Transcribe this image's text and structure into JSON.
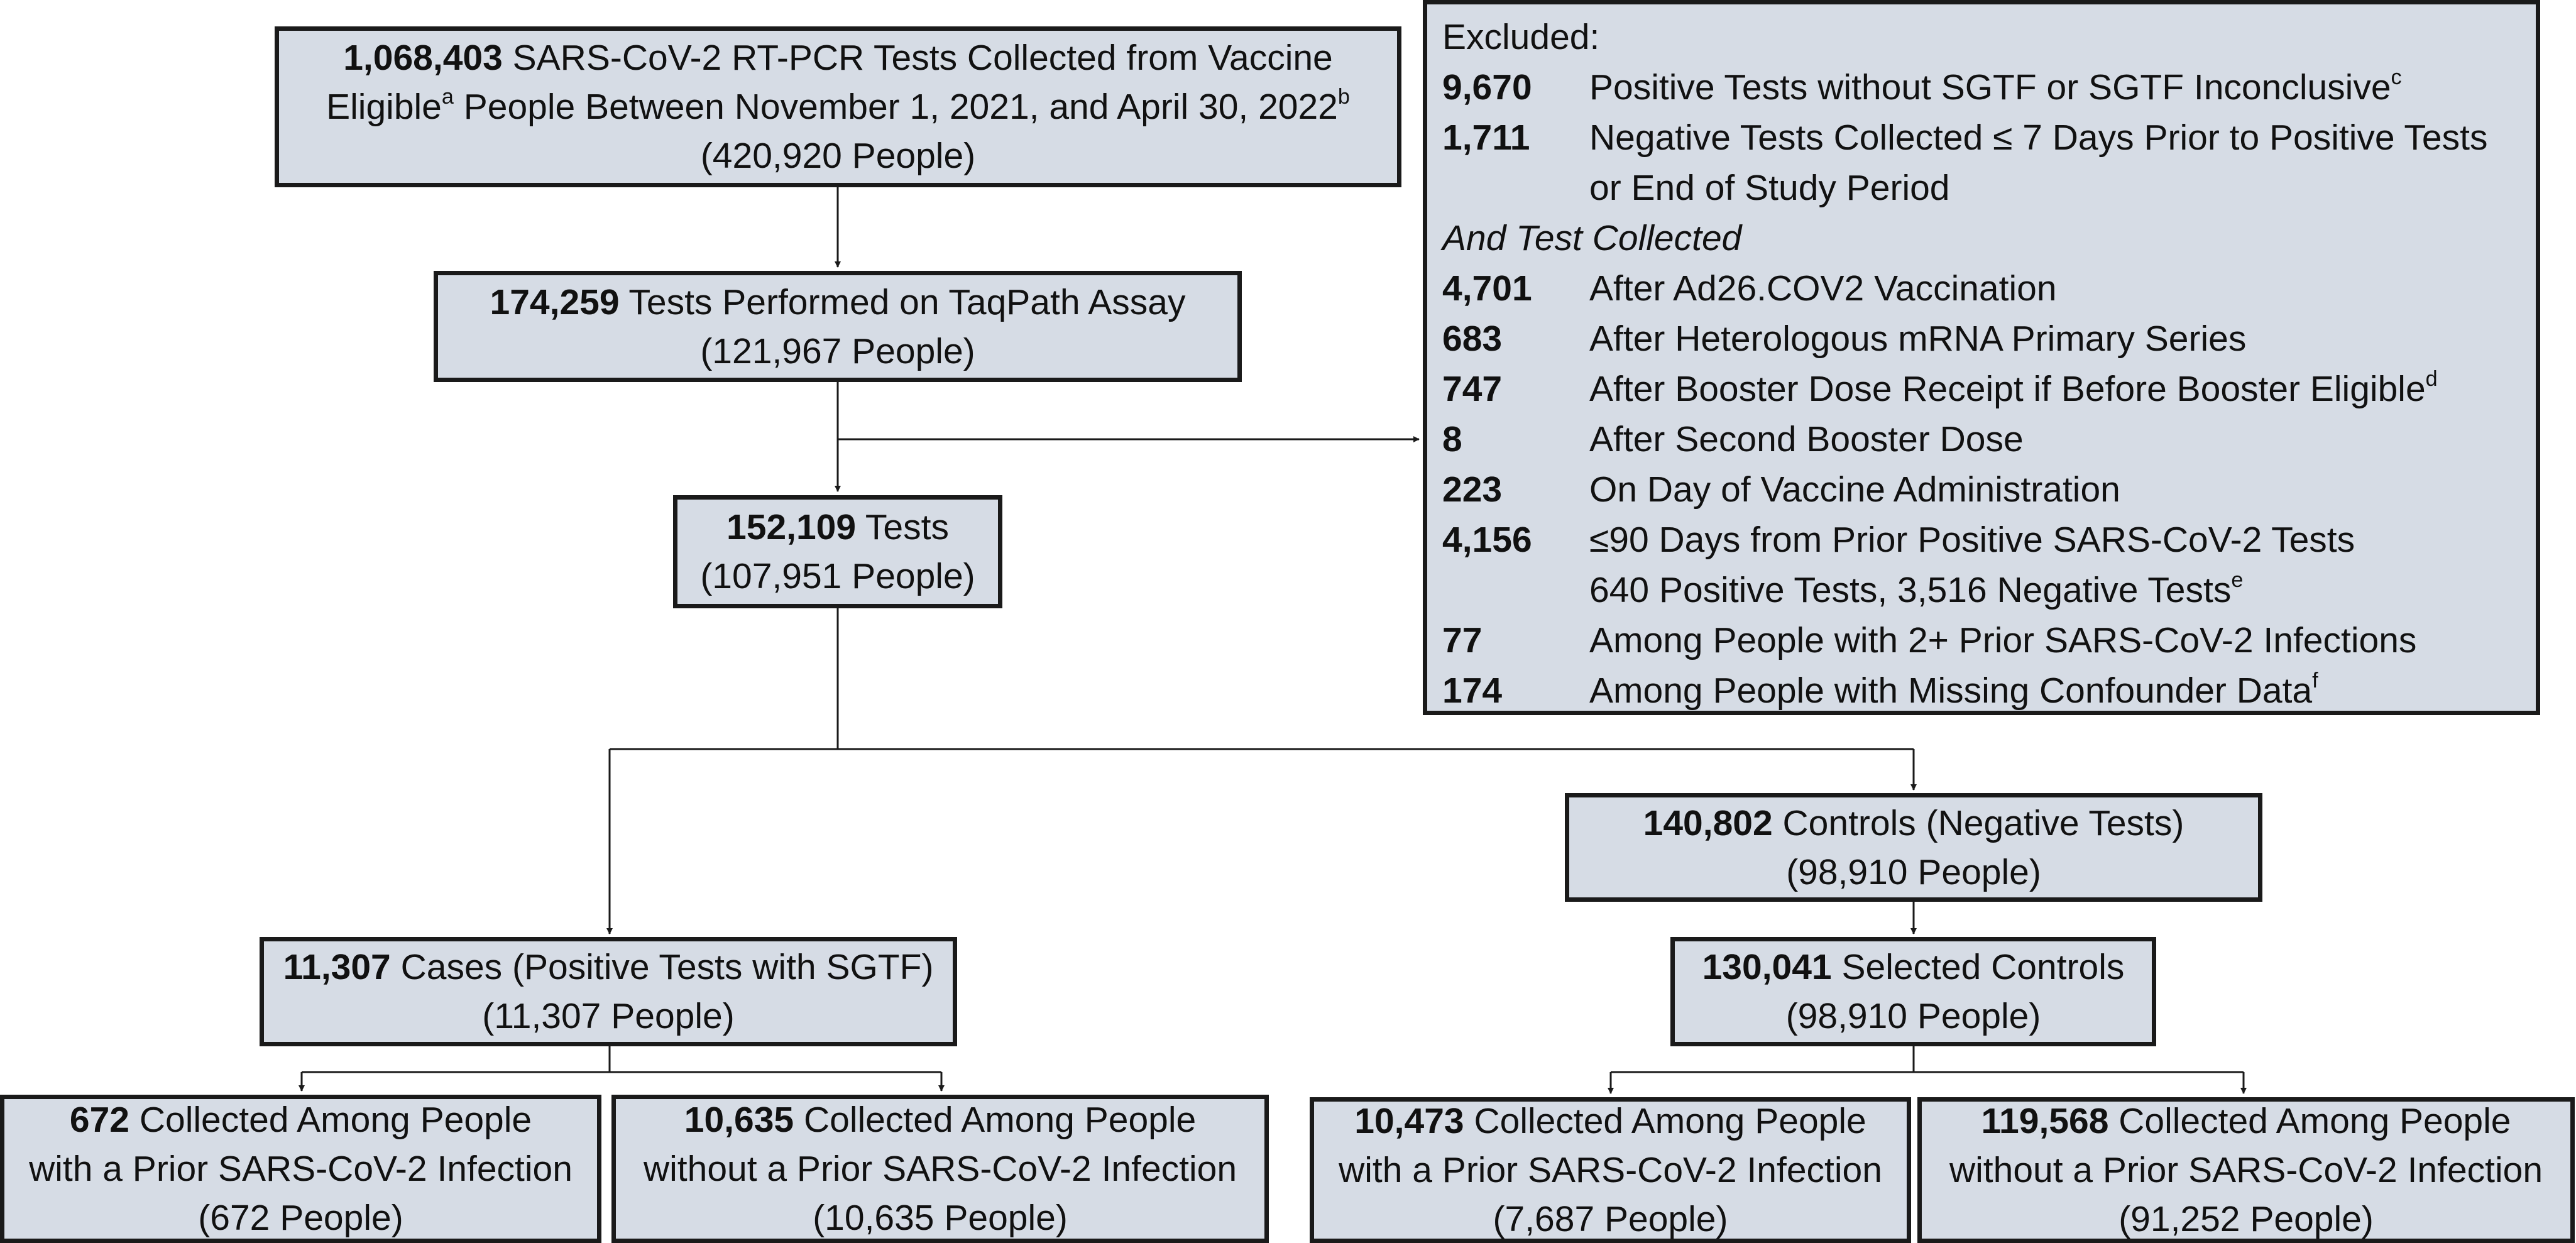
{
  "diagram": {
    "boxes": {
      "total": {
        "number": "1,068,403",
        "text_1": " SARS-CoV-2 RT-PCR Tests Collected from Vaccine",
        "text_2a": "Eligible",
        "sup_a": "a",
        "text_2b": " People Between November 1, 2021, and April 30, 2022",
        "sup_b": "b",
        "people": "(420,920 People)"
      },
      "taqpath": {
        "number": "174,259",
        "text": " Tests Performed on TaqPath Assay",
        "people": "(121,967 People)"
      },
      "tests": {
        "number": "152,109",
        "text": " Tests",
        "people": "(107,951 People)"
      },
      "cases": {
        "number": "11,307",
        "text": " Cases (Positive Tests with SGTF)",
        "people": "(11,307 People)"
      },
      "controls": {
        "number": "140,802",
        "text": " Controls (Negative Tests)",
        "people": "(98,910 People)"
      },
      "selected_controls": {
        "number": "130,041",
        "text": " Selected Controls",
        "people": "(98,910 People)"
      },
      "cases_prior": {
        "number": "672",
        "text_1": " Collected Among People",
        "text_2": "with a Prior SARS-CoV-2 Infection",
        "people": "(672 People)"
      },
      "cases_no_prior": {
        "number": "10,635",
        "text_1": " Collected Among People",
        "text_2": "without a Prior SARS-CoV-2 Infection",
        "people": "(10,635 People)"
      },
      "controls_prior": {
        "number": "10,473",
        "text_1": " Collected Among People",
        "text_2": "with a Prior SARS-CoV-2 Infection",
        "people": "(7,687 People)"
      },
      "controls_no_prior": {
        "number": "119,568",
        "text_1": " Collected Among People",
        "text_2": "without a Prior SARS-CoV-2 Infection",
        "people": "(91,252 People)"
      }
    },
    "excluded": {
      "title": "Excluded:",
      "rows_top": [
        {
          "number": "9,670",
          "text": "Positive Tests without SGTF or SGTF Inconclusive",
          "sup": "c"
        },
        {
          "number": "1,711",
          "text": "Negative Tests Collected ≤ 7 Days Prior to Positive Tests",
          "sup": ""
        },
        {
          "number": "",
          "text": "or End of Study Period",
          "sup": ""
        }
      ],
      "subtitle": "And Test Collected",
      "rows_bottom": [
        {
          "number": "4,701",
          "text": "After Ad26.COV2 Vaccination",
          "sup": ""
        },
        {
          "number": "683",
          "text": "After Heterologous mRNA Primary Series",
          "sup": ""
        },
        {
          "number": "747",
          "text": "After Booster Dose Receipt if Before Booster Eligible",
          "sup": "d"
        },
        {
          "number": "8",
          "text": "After Second Booster Dose",
          "sup": ""
        },
        {
          "number": "223",
          "text": "On Day of Vaccine Administration",
          "sup": ""
        },
        {
          "number": "4,156",
          "text": "≤90 Days from Prior Positive SARS-CoV-2 Tests",
          "sup": ""
        },
        {
          "number": "",
          "text": "640 Positive Tests, 3,516 Negative Tests",
          "sup": "e"
        },
        {
          "number": "77",
          "text": "Among People with 2+ Prior SARS-CoV-2 Infections",
          "sup": ""
        },
        {
          "number": "174",
          "text": "Among People with Missing Confounder Data",
          "sup": "f"
        }
      ]
    }
  }
}
